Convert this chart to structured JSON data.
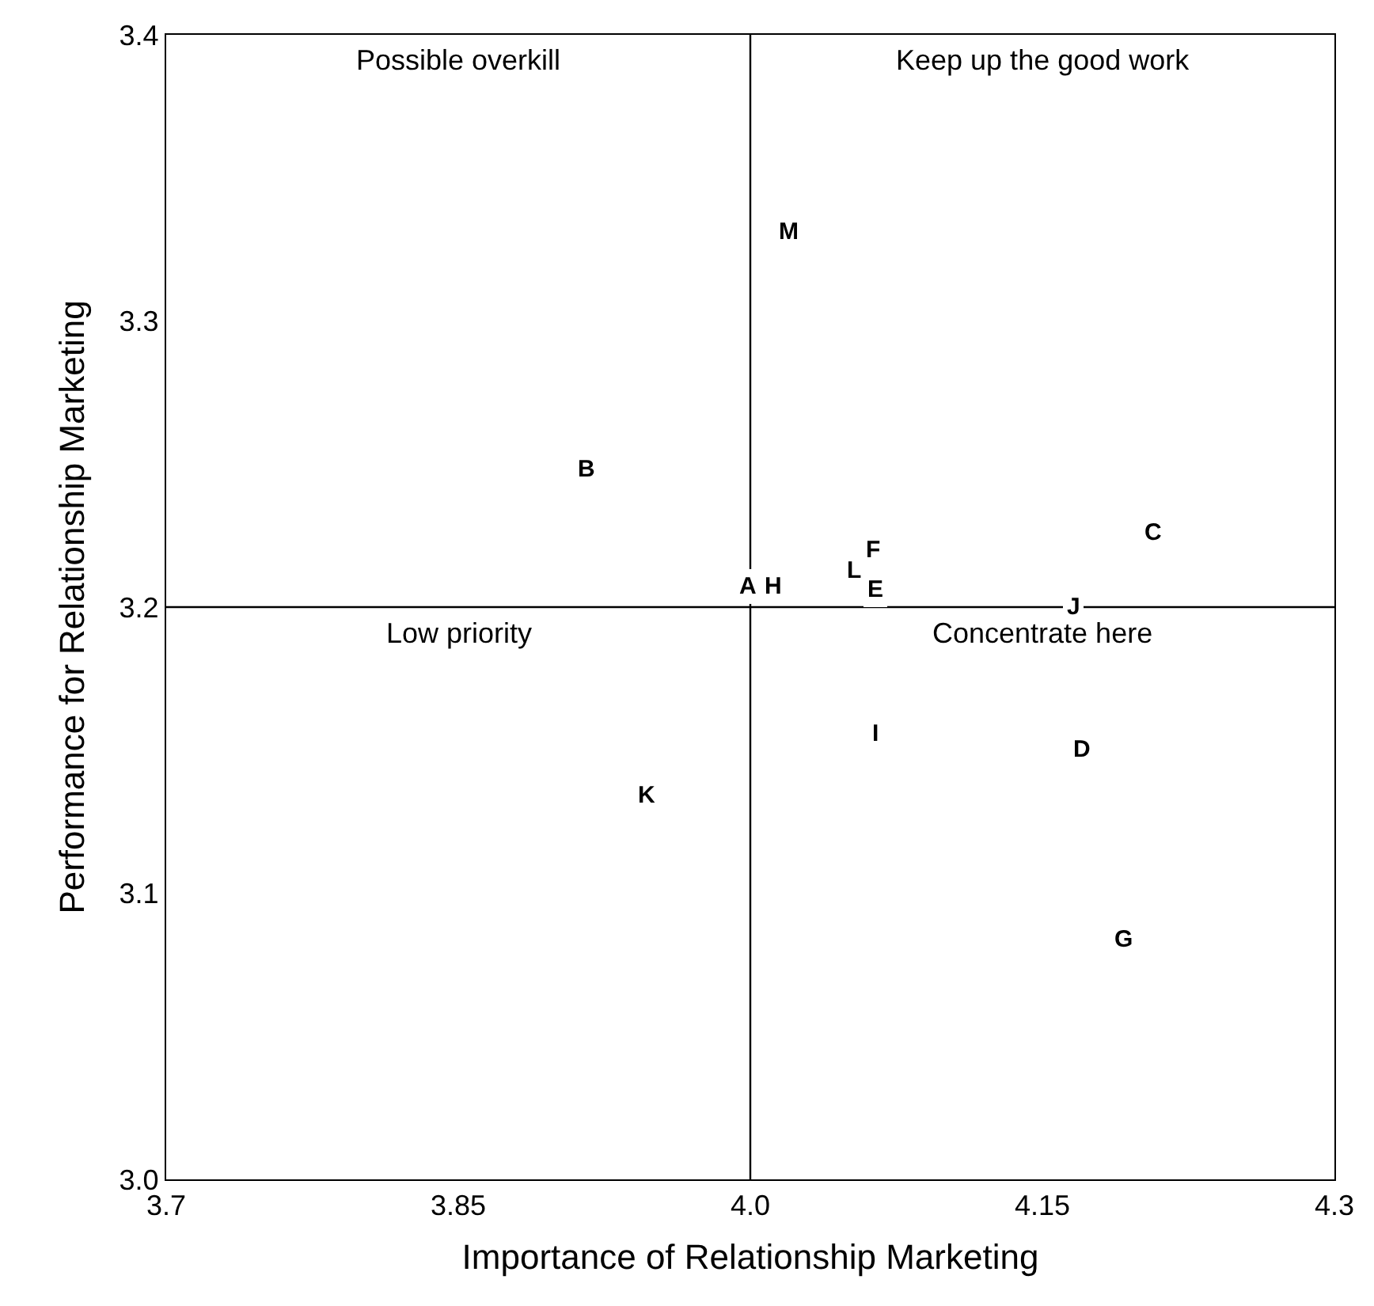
{
  "chart_data": {
    "type": "scatter",
    "xlabel": "Importance of Relationship Marketing",
    "ylabel": "Performance for Relationship Marketing",
    "xlim": [
      3.7,
      4.3
    ],
    "xticks": [
      3.7,
      3.85,
      {
        "value": 4.0,
        "label": "4.0"
      },
      4.15,
      4.3
    ],
    "ylim": [
      3.0,
      3.4
    ],
    "yticks": [
      {
        "value": 3.0,
        "label": "3.0"
      },
      3.1,
      3.2,
      3.3,
      3.4
    ],
    "ref_lines": [
      {
        "axis": "x",
        "value": 4.0
      },
      {
        "axis": "y",
        "value": 3.2
      }
    ],
    "annotations": [
      "Possible overkill",
      "Keep up the good work",
      "Low priority",
      "Concentrate here",
      {
        "text": "A",
        "x": 3.999,
        "y": 3.207
      },
      {
        "text": "B",
        "x": 3.916,
        "y": 3.248
      },
      {
        "text": "C",
        "x": 4.207,
        "y": 3.226
      },
      {
        "text": "D",
        "x": 4.17,
        "y": 3.15
      },
      {
        "text": "E",
        "x": 4.064,
        "y": 3.206
      },
      {
        "text": "F",
        "x": 4.063,
        "y": 3.22
      },
      {
        "text": "G",
        "x": 4.192,
        "y": 3.084
      },
      {
        "text": "H",
        "x": 4.012,
        "y": 3.207
      },
      {
        "text": "I",
        "x": 4.064,
        "y": 3.156
      },
      {
        "text": "J",
        "x": 4.166,
        "y": 3.2
      },
      {
        "text": "K",
        "x": 3.947,
        "y": 3.134
      },
      {
        "text": "L",
        "x": 4.053,
        "y": 3.213
      },
      {
        "text": "M",
        "x": 4.02,
        "y": 3.331
      }
    ],
    "grid": false
  }
}
